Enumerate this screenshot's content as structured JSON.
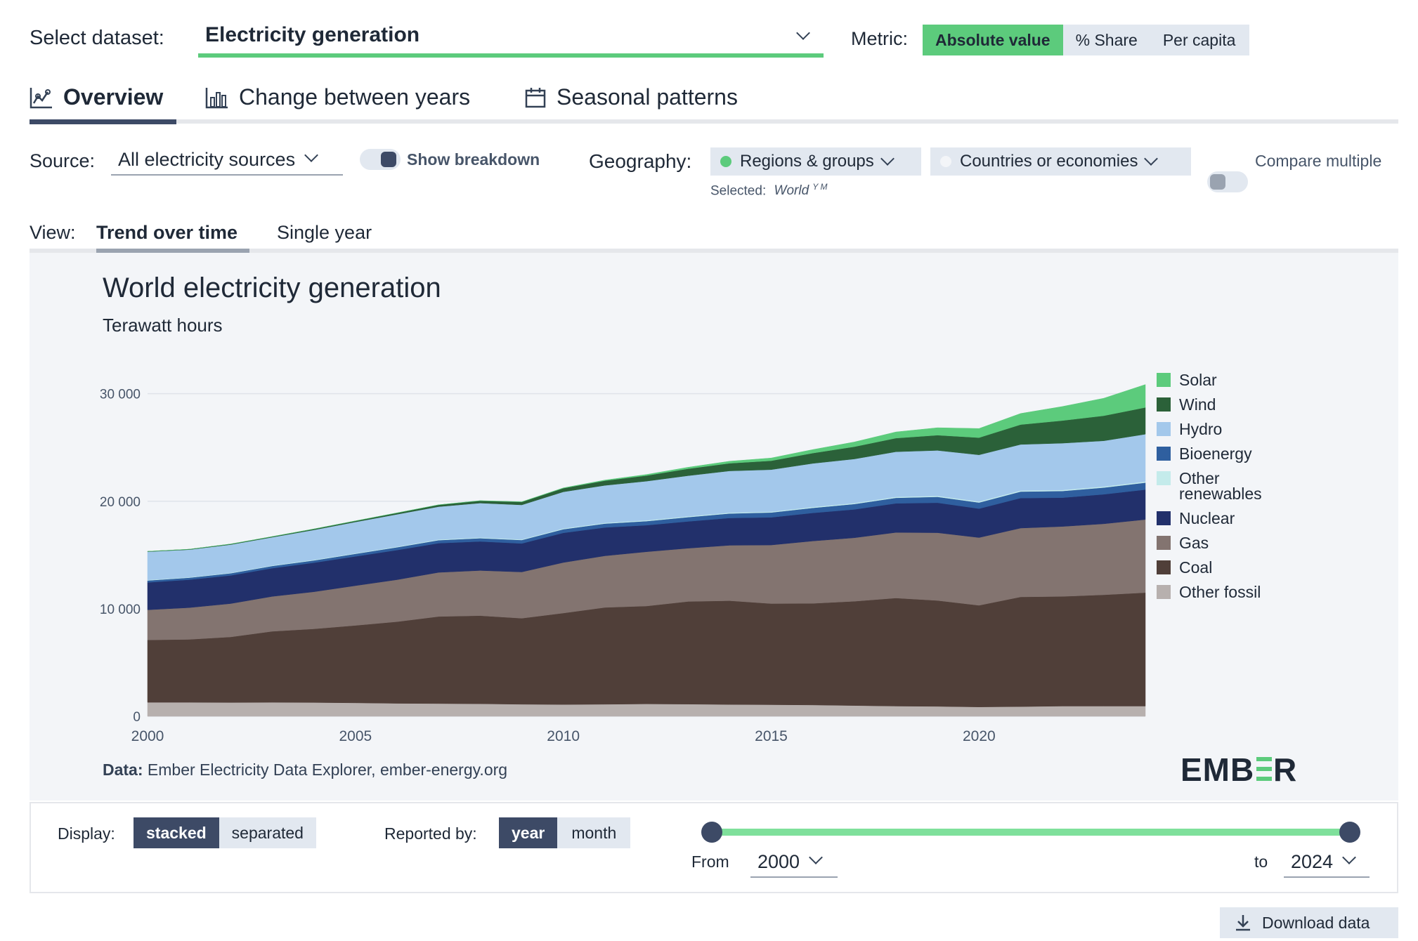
{
  "dataset": {
    "label": "Select dataset:",
    "value": "Electricity generation"
  },
  "metric": {
    "label": "Metric:",
    "options": [
      "Absolute value",
      "% Share",
      "Per capita"
    ]
  },
  "tabs": [
    {
      "label": "Overview",
      "icon": "line-chart-icon"
    },
    {
      "label": "Change between years",
      "icon": "bar-chart-icon"
    },
    {
      "label": "Seasonal patterns",
      "icon": "calendar-icon"
    }
  ],
  "source": {
    "label": "Source:",
    "value": "All electricity sources",
    "breakdown_label": "Show breakdown"
  },
  "geography": {
    "label": "Geography:",
    "regions_label": "Regions & groups",
    "countries_label": "Countries or economies",
    "compare_label": "Compare multiple",
    "selected_label": "Selected:",
    "selected_value": "World",
    "selected_suffix": "Y M"
  },
  "view": {
    "label": "View:",
    "options": [
      "Trend over time",
      "Single year"
    ]
  },
  "colors": {
    "accent": "#5ccb7c",
    "dark": "#3d4a66",
    "solar": "#5ccb7c",
    "wind": "#2b6139",
    "hydro": "#a3c8eb",
    "bioenergy": "#2f5f9f",
    "other_renewables": "#c4ebeb",
    "nuclear": "#22306b",
    "gas": "#837470",
    "coal": "#503f39",
    "other_fossil": "#b7b0ae"
  },
  "chart_data": {
    "type": "area",
    "title": "World electricity generation",
    "subtitle": "Terawatt hours",
    "x": [
      2000,
      2001,
      2002,
      2003,
      2004,
      2005,
      2006,
      2007,
      2008,
      2009,
      2010,
      2011,
      2012,
      2013,
      2014,
      2015,
      2016,
      2017,
      2018,
      2019,
      2020,
      2021,
      2022,
      2023,
      2024
    ],
    "x_ticks": [
      "2000",
      "2005",
      "2010",
      "2015",
      "2020"
    ],
    "y_ticks": [
      "0",
      "10 000",
      "20 000",
      "30 000"
    ],
    "ylim": [
      0,
      32000
    ],
    "series": [
      {
        "name": "Other fossil",
        "color": "#b7b0ae",
        "values": [
          1300,
          1300,
          1280,
          1300,
          1280,
          1250,
          1200,
          1180,
          1160,
          1120,
          1100,
          1120,
          1150,
          1130,
          1100,
          1080,
          1050,
          1000,
          950,
          920,
          870,
          900,
          950,
          950,
          950
        ]
      },
      {
        "name": "Coal",
        "color": "#503f39",
        "values": [
          5800,
          5850,
          6100,
          6600,
          6850,
          7200,
          7600,
          8100,
          8200,
          8000,
          8500,
          9000,
          9100,
          9550,
          9650,
          9400,
          9450,
          9700,
          10050,
          9850,
          9450,
          10200,
          10200,
          10350,
          10550
        ]
      },
      {
        "name": "Gas",
        "color": "#837470",
        "values": [
          2800,
          2950,
          3100,
          3250,
          3450,
          3700,
          3900,
          4100,
          4200,
          4300,
          4700,
          4800,
          5050,
          4950,
          5150,
          5450,
          5800,
          5900,
          6100,
          6300,
          6300,
          6400,
          6500,
          6600,
          6800
        ]
      },
      {
        "name": "Nuclear",
        "color": "#22306b",
        "values": [
          2550,
          2600,
          2620,
          2620,
          2700,
          2720,
          2760,
          2720,
          2700,
          2650,
          2760,
          2640,
          2470,
          2490,
          2540,
          2570,
          2610,
          2640,
          2700,
          2790,
          2690,
          2800,
          2680,
          2740,
          2780
        ]
      },
      {
        "name": "Bioenergy",
        "color": "#2f5f9f",
        "values": [
          180,
          190,
          200,
          210,
          220,
          240,
          260,
          280,
          300,
          320,
          340,
          360,
          380,
          400,
          420,
          450,
          470,
          500,
          520,
          550,
          570,
          600,
          620,
          630,
          650
        ]
      },
      {
        "name": "Other renewables",
        "color": "#c4ebeb",
        "values": [
          50,
          50,
          50,
          52,
          55,
          57,
          60,
          62,
          65,
          67,
          70,
          72,
          75,
          77,
          80,
          83,
          86,
          88,
          90,
          92,
          95,
          97,
          100,
          100,
          102
        ]
      },
      {
        "name": "Hydro",
        "color": "#a3c8eb",
        "values": [
          2630,
          2560,
          2620,
          2620,
          2780,
          2900,
          3000,
          3050,
          3200,
          3200,
          3400,
          3480,
          3640,
          3780,
          3880,
          3900,
          4050,
          4100,
          4190,
          4220,
          4340,
          4280,
          4350,
          4250,
          4400
        ]
      },
      {
        "name": "Wind",
        "color": "#2b6139",
        "values": [
          31,
          38,
          52,
          63,
          85,
          104,
          133,
          171,
          220,
          276,
          342,
          437,
          524,
          641,
          712,
          831,
          959,
          1140,
          1270,
          1420,
          1600,
          1850,
          2100,
          2330,
          2490
        ]
      },
      {
        "name": "Solar",
        "color": "#5ccb7c",
        "values": [
          1,
          1,
          2,
          2,
          3,
          4,
          6,
          8,
          12,
          20,
          32,
          63,
          99,
          139,
          190,
          255,
          330,
          443,
          574,
          690,
          846,
          1033,
          1306,
          1630,
          2130
        ]
      }
    ],
    "legend": [
      "Solar",
      "Wind",
      "Hydro",
      "Bioenergy",
      "Other renewables",
      "Nuclear",
      "Gas",
      "Coal",
      "Other fossil"
    ],
    "legend_placement": "right",
    "source_label": "Data:",
    "source_text": "Ember Electricity Data Explorer, ember-energy.org"
  },
  "logo_text": "EMBER",
  "display": {
    "label": "Display:",
    "options": [
      "stacked",
      "separated"
    ]
  },
  "reported_by": {
    "label": "Reported by:",
    "options": [
      "year",
      "month"
    ]
  },
  "range": {
    "from_label": "From",
    "from_value": "2000",
    "to_label": "to",
    "to_value": "2024"
  },
  "download_label": "Download data"
}
